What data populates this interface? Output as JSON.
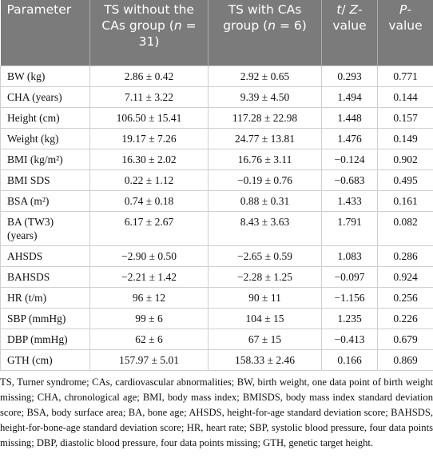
{
  "table": {
    "header": [
      [
        {
          "text": "Parameter",
          "italic": false
        }
      ],
      [
        {
          "text": "TS without the CAs group (",
          "italic": false
        },
        {
          "text": "n",
          "italic": true
        },
        {
          "text": " = 31)",
          "italic": false
        }
      ],
      [
        {
          "text": "TS with CAs group (",
          "italic": false
        },
        {
          "text": "n",
          "italic": true
        },
        {
          "text": " = 6)",
          "italic": false
        }
      ],
      [
        {
          "text": "t",
          "italic": true
        },
        {
          "text": "/ ",
          "italic": false
        },
        {
          "text": "Z",
          "italic": true
        },
        {
          "text": "-value",
          "italic": false
        }
      ],
      [
        {
          "text": "P",
          "italic": true
        },
        {
          "text": "-value",
          "italic": false
        }
      ]
    ],
    "rows": [
      [
        "BW (kg)",
        "2.86 ± 0.42",
        "2.92 ± 0.65",
        "0.293",
        "0.771"
      ],
      [
        "CHA (years)",
        "7.11 ± 3.22",
        "9.39 ± 4.50",
        "1.494",
        "0.144"
      ],
      [
        "Height (cm)",
        "106.50 ± 15.41",
        "117.28 ± 22.98",
        "1.448",
        "0.157"
      ],
      [
        "Weight (kg)",
        "19.17 ± 7.26",
        "24.77 ± 13.81",
        "1.476",
        "0.149"
      ],
      [
        "BMI (kg/m²)",
        "16.30 ± 2.02",
        "16.76 ± 3.11",
        "−0.124",
        "0.902"
      ],
      [
        "BMI SDS",
        "0.22 ± 1.12",
        "−0.19 ± 0.76",
        "−0.683",
        "0.495"
      ],
      [
        "BSA (m²)",
        "0.74 ± 0.18",
        "0.88 ± 0.31",
        "1.433",
        "0.161"
      ],
      [
        "BA (TW3) (years)",
        "6.17 ± 2.67",
        "8.43 ± 3.63",
        "1.791",
        "0.082"
      ],
      [
        "AHSDS",
        "−2.90 ± 0.50",
        "−2.65 ± 0.59",
        "1.083",
        "0.286"
      ],
      [
        "BAHSDS",
        "−2.21 ± 1.42",
        "−2.28 ± 1.25",
        "−0.097",
        "0.924"
      ],
      [
        "HR (t/m)",
        "96 ± 12",
        "90 ± 11",
        "−1.156",
        "0.256"
      ],
      [
        "SBP (mmHg)",
        "99 ± 6",
        "104 ± 15",
        "1.235",
        "0.226"
      ],
      [
        "DBP (mmHg)",
        "62 ± 6",
        "67 ± 15",
        "−0.413",
        "0.679"
      ],
      [
        "GTH (cm)",
        "157.97 ± 5.01",
        "158.33 ± 2.46",
        "0.166",
        "0.869"
      ]
    ]
  },
  "footnote": "TS, Turner syndrome; CAs, cardiovascular abnormalities; BW, birth weight, one data point of birth weight missing; CHA, chronological age; BMI, body mass index; BMISDS, body mass index standard deviation score; BSA, body surface area; BA, bone age; AHSDS, height-for-age standard deviation score; BAHSDS, height-for-bone-age standard deviation score; HR, heart rate; SBP, systolic blood pressure, four data points missing; DBP, diastolic blood pressure, four data points missing; GTH, genetic target height."
}
